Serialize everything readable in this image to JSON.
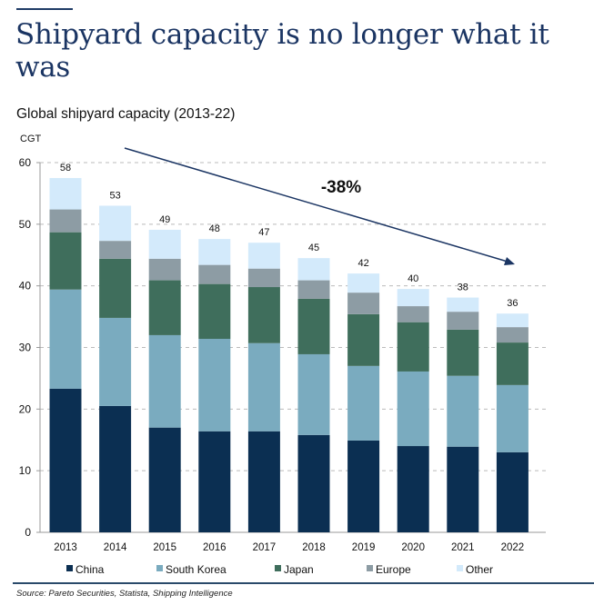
{
  "header": {
    "title": "Shipyard capacity is no longer what it was"
  },
  "chart_data": {
    "type": "bar",
    "stacked": true,
    "title": "Global shipyard capacity (2013-22)",
    "ylabel": "CGT",
    "xlabel": "",
    "ylim": [
      0,
      60
    ],
    "yticks": [
      0,
      10,
      20,
      30,
      40,
      50,
      60
    ],
    "grid": true,
    "legend_position": "bottom",
    "categories": [
      "2013",
      "2014",
      "2015",
      "2016",
      "2017",
      "2018",
      "2019",
      "2020",
      "2021",
      "2022"
    ],
    "totals": [
      "58",
      "53",
      "49",
      "48",
      "47",
      "45",
      "42",
      "40",
      "38",
      "36"
    ],
    "series": [
      {
        "name": "China",
        "color": "#0b2f52",
        "values": [
          23.3,
          20.5,
          17.0,
          16.4,
          16.4,
          15.8,
          14.9,
          14.0,
          13.9,
          13.0
        ]
      },
      {
        "name": "South Korea",
        "color": "#7aabbf",
        "values": [
          16.1,
          14.3,
          15.0,
          15.0,
          14.3,
          13.1,
          12.1,
          12.1,
          11.5,
          10.9
        ]
      },
      {
        "name": "Japan",
        "color": "#3f6e5c",
        "values": [
          9.3,
          9.6,
          8.9,
          8.9,
          9.1,
          9.0,
          8.4,
          8.0,
          7.5,
          6.9
        ]
      },
      {
        "name": "Europe",
        "color": "#8d9ca4",
        "values": [
          3.7,
          2.9,
          3.5,
          3.1,
          3.0,
          3.0,
          3.5,
          2.6,
          2.9,
          2.5
        ]
      },
      {
        "name": "Other",
        "color": "#d3eafb",
        "values": [
          5.1,
          5.7,
          4.7,
          4.2,
          4.2,
          3.6,
          3.1,
          2.8,
          2.3,
          2.2
        ]
      }
    ],
    "annotation": "-38%"
  },
  "footer": {
    "source": "Source: Pareto Securities, Statista, Shipping Intelligence"
  }
}
